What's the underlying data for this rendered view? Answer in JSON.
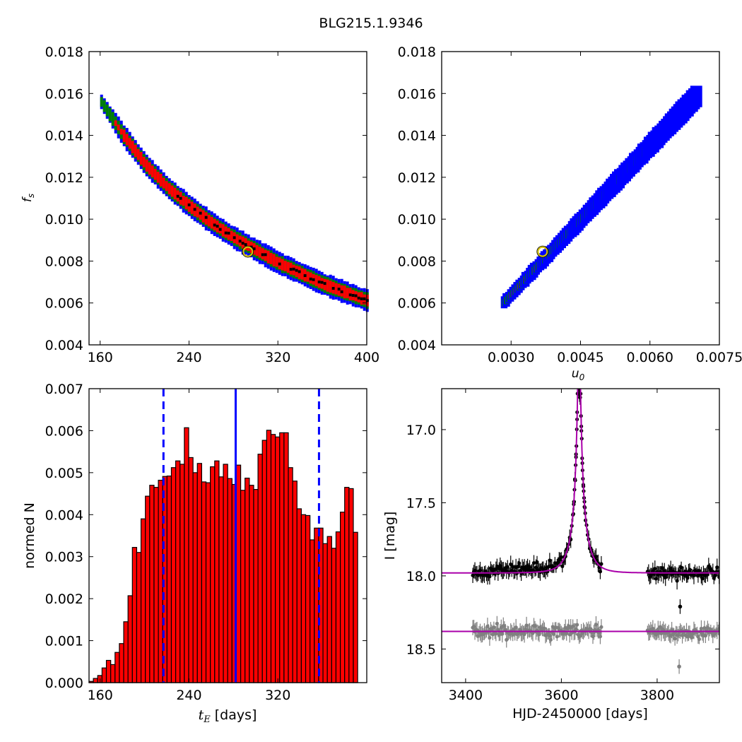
{
  "figure": {
    "title": "BLG215.1.9346"
  },
  "chart_data": [
    {
      "type": "scatter",
      "subtype": "2d-density",
      "xlim": [
        150,
        400
      ],
      "ylim": [
        0.004,
        0.018
      ],
      "xticks": [
        160,
        240,
        320,
        400
      ],
      "yticks": [
        0.004,
        0.006,
        0.008,
        0.01,
        0.012,
        0.014,
        0.016,
        0.018
      ],
      "xlabel": "",
      "ylabel": "f_s",
      "ylabel_display": "fs",
      "colors": {
        "outer": "#0000ff",
        "middle": "#008000",
        "inner": "#ff0000",
        "ridge": "#000000",
        "best": "#d4c20a"
      },
      "ridge": [
        [
          160,
          0.0156
        ],
        [
          180,
          0.014
        ],
        [
          200,
          0.0126
        ],
        [
          220,
          0.0115
        ],
        [
          240,
          0.0106
        ],
        [
          260,
          0.0098
        ],
        [
          280,
          0.0091
        ],
        [
          300,
          0.0085
        ],
        [
          320,
          0.0079
        ],
        [
          340,
          0.0074
        ],
        [
          360,
          0.0069
        ],
        [
          380,
          0.0065
        ],
        [
          400,
          0.0061
        ]
      ],
      "best_fit": {
        "x": 293,
        "y": 0.00845
      }
    },
    {
      "type": "scatter",
      "subtype": "2d-density",
      "xlim": [
        0.0015,
        0.0075
      ],
      "ylim": [
        0.004,
        0.018
      ],
      "xticks": [
        0.003,
        0.0045,
        0.006,
        0.0075
      ],
      "xtick_labels": [
        "0.0030",
        "0.0045",
        "0.0060",
        "0.0075"
      ],
      "yticks": [
        0.004,
        0.006,
        0.008,
        0.01,
        0.012,
        0.014,
        0.016,
        0.018
      ],
      "xlabel": "u_0",
      "xlabel_display": "u0",
      "ylabel": "",
      "colors": {
        "outer": "#0000ff",
        "middle": "#008000",
        "inner": "#ff0000",
        "ridge": "#000000",
        "best": "#d4c20a"
      },
      "ridge": [
        [
          0.00285,
          0.006
        ],
        [
          0.007,
          0.0158
        ]
      ],
      "best_fit": {
        "x": 0.00368,
        "y": 0.00845
      }
    },
    {
      "type": "bar",
      "subtype": "histogram",
      "xlim": [
        150,
        400
      ],
      "ylim": [
        0,
        0.007
      ],
      "xticks": [
        160,
        240,
        320
      ],
      "yticks": [
        0.0,
        0.001,
        0.002,
        0.003,
        0.004,
        0.005,
        0.006,
        0.007
      ],
      "xlabel": "t_E  [days]",
      "xlabel_display": "tE",
      "xlabel_unit": " [days]",
      "ylabel": "normed N",
      "bin_start": 150,
      "bin_width": 3.9,
      "values": [
        3e-05,
        0.0001,
        0.00017,
        0.00035,
        0.00053,
        0.00043,
        0.00072,
        0.00093,
        0.00145,
        0.00207,
        0.00322,
        0.0031,
        0.0039,
        0.00444,
        0.0047,
        0.00465,
        0.00482,
        0.00491,
        0.00492,
        0.00512,
        0.00528,
        0.0052,
        0.00607,
        0.00536,
        0.005,
        0.00522,
        0.00478,
        0.00476,
        0.00514,
        0.00528,
        0.0049,
        0.0052,
        0.00486,
        0.00472,
        0.00518,
        0.00458,
        0.00487,
        0.0047,
        0.0046,
        0.00544,
        0.00577,
        0.00601,
        0.00591,
        0.00585,
        0.00595,
        0.00595,
        0.00512,
        0.0048,
        0.00414,
        0.004,
        0.00398,
        0.0034,
        0.00368,
        0.00368,
        0.00331,
        0.00348,
        0.0032,
        0.00359,
        0.00406,
        0.00465,
        0.00462,
        0.00358
      ],
      "bar_color": "#ff0000",
      "median": 282,
      "percentile_lines": [
        217,
        357
      ],
      "line_color": "#0000ff"
    },
    {
      "type": "scatter",
      "subtype": "light-curve",
      "xlim": [
        3350,
        3930
      ],
      "ylim": [
        18.73,
        16.72
      ],
      "xticks": [
        3400,
        3600,
        3800
      ],
      "yticks": [
        17.0,
        17.5,
        18.0,
        18.5
      ],
      "ytick_labels": [
        "17.0",
        "17.5",
        "18.0",
        "18.5"
      ],
      "xlabel": "HJD-2450000 [days]",
      "ylabel": "I [mag]",
      "model": {
        "t0": 3637,
        "u0": 0.0037,
        "tE": 293,
        "fs": 0.00845,
        "baseline": 17.98,
        "color": "#aa00aa"
      },
      "residual_offset": 18.38,
      "data_colors": [
        "#000000",
        "#808080"
      ],
      "observation_segments": [
        [
          3415,
          3685
        ],
        [
          3780,
          3930
        ]
      ],
      "outliers": [
        [
          3637,
          16.73
        ],
        [
          3638,
          16.76
        ],
        [
          3639,
          16.78
        ],
        [
          3848,
          18.21
        ],
        [
          3846,
          18.62
        ]
      ]
    }
  ]
}
